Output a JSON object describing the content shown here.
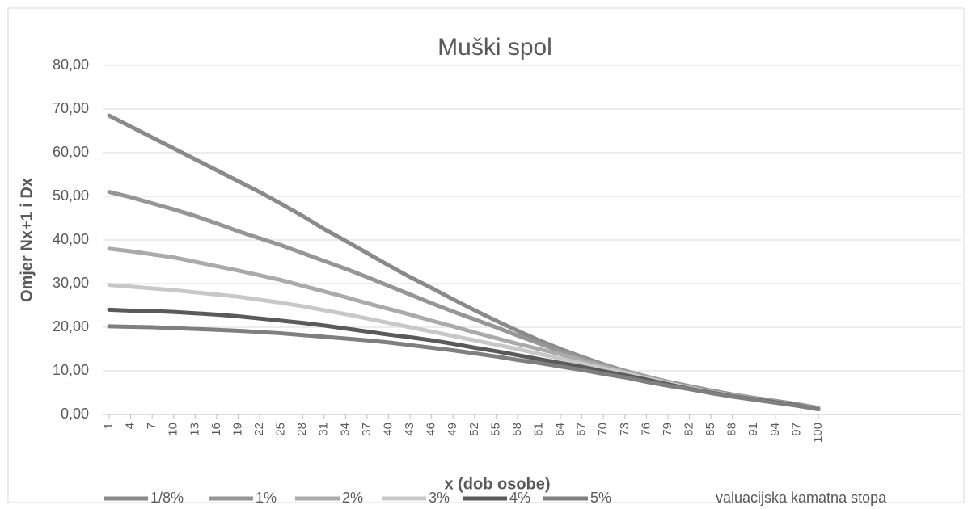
{
  "chart_data": {
    "type": "line",
    "title": "Muški spol",
    "x_label": "x (dob osobe)",
    "y_label": "Omjer Nx+1 i Dx",
    "legend_title": "valuacijska kamatna stopa",
    "legend": "bottom",
    "grid": true,
    "categories": [
      "1",
      "4",
      "7",
      "10",
      "13",
      "16",
      "19",
      "22",
      "25",
      "28",
      "31",
      "34",
      "37",
      "40",
      "43",
      "46",
      "49",
      "52",
      "55",
      "58",
      "61",
      "64",
      "67",
      "70",
      "73",
      "76",
      "79",
      "82",
      "85",
      "88",
      "91",
      "94",
      "97",
      "100"
    ],
    "ylim": [
      0,
      80
    ],
    "yticks": [
      {
        "value": 0,
        "label": "0,00"
      },
      {
        "value": 10,
        "label": "10,00"
      },
      {
        "value": 20,
        "label": "20,00"
      },
      {
        "value": 30,
        "label": "30,00"
      },
      {
        "value": 40,
        "label": "40,00"
      },
      {
        "value": 50,
        "label": "50,00"
      },
      {
        "value": 60,
        "label": "60,00"
      },
      {
        "value": 70,
        "label": "70,00"
      },
      {
        "value": 80,
        "label": "80,00"
      }
    ],
    "series": [
      {
        "name": "1/8%",
        "color": "#8a8a8a",
        "values": [
          68.5,
          66,
          63.5,
          61,
          58.5,
          56,
          53.5,
          51,
          48.3,
          45.5,
          42.5,
          39.8,
          37,
          34.2,
          31.5,
          29,
          26.4,
          23.9,
          21.5,
          19.2,
          17,
          15,
          13.2,
          11.5,
          10,
          8.7,
          7.5,
          6.5,
          5.5,
          4.6,
          3.8,
          3.1,
          2.4,
          1.5
        ]
      },
      {
        "name": "1%",
        "color": "#969696",
        "values": [
          51,
          49.8,
          48.4,
          47,
          45.5,
          43.8,
          42,
          40.4,
          38.8,
          37,
          35.2,
          33.4,
          31.5,
          29.5,
          27.5,
          25.5,
          23.6,
          21.8,
          20,
          18.1,
          16.3,
          14.5,
          12.9,
          11.4,
          10,
          8.7,
          7.4,
          6.3,
          5.3,
          4.5,
          3.7,
          3,
          2.3,
          1.4
        ]
      },
      {
        "name": "2%",
        "color": "#aaaaaa",
        "values": [
          38,
          37.4,
          36.7,
          36,
          35,
          34,
          33,
          31.9,
          30.8,
          29.5,
          28.2,
          26.9,
          25.5,
          24.2,
          22.9,
          21.5,
          20.2,
          18.8,
          17.5,
          16.2,
          15,
          13.8,
          12.4,
          11,
          9.8,
          8.5,
          7.3,
          6.2,
          5.2,
          4.4,
          3.6,
          2.9,
          2.2,
          1.3
        ]
      },
      {
        "name": "3%",
        "color": "#c8c8c8",
        "values": [
          29.7,
          29.3,
          28.9,
          28.5,
          28,
          27.5,
          27,
          26.3,
          25.6,
          24.8,
          23.9,
          23,
          22,
          21,
          20,
          19,
          18,
          17,
          16,
          15,
          13.9,
          12.8,
          11.7,
          10.6,
          9.5,
          8.3,
          7.2,
          6.1,
          5.1,
          4.3,
          3.5,
          2.8,
          2.1,
          1.3
        ]
      },
      {
        "name": "4%",
        "color": "#5a5a5a",
        "values": [
          24,
          23.8,
          23.7,
          23.5,
          23.2,
          22.9,
          22.5,
          22,
          21.5,
          21,
          20.4,
          19.7,
          19,
          18.3,
          17.7,
          17,
          16.2,
          15.3,
          14.5,
          13.6,
          12.7,
          11.8,
          10.9,
          9.9,
          9,
          8,
          6.9,
          5.9,
          5,
          4.2,
          3.5,
          2.8,
          2.1,
          1.2
        ]
      },
      {
        "name": "5%",
        "color": "#7f7f7f",
        "values": [
          20.2,
          20.1,
          20,
          19.8,
          19.6,
          19.4,
          19.2,
          18.9,
          18.6,
          18.2,
          17.8,
          17.4,
          17,
          16.5,
          15.9,
          15.3,
          14.7,
          14,
          13.3,
          12.5,
          11.8,
          11,
          10.2,
          9.3,
          8.5,
          7.5,
          6.6,
          5.8,
          4.9,
          4.1,
          3.4,
          2.7,
          2,
          1.2
        ]
      }
    ]
  }
}
